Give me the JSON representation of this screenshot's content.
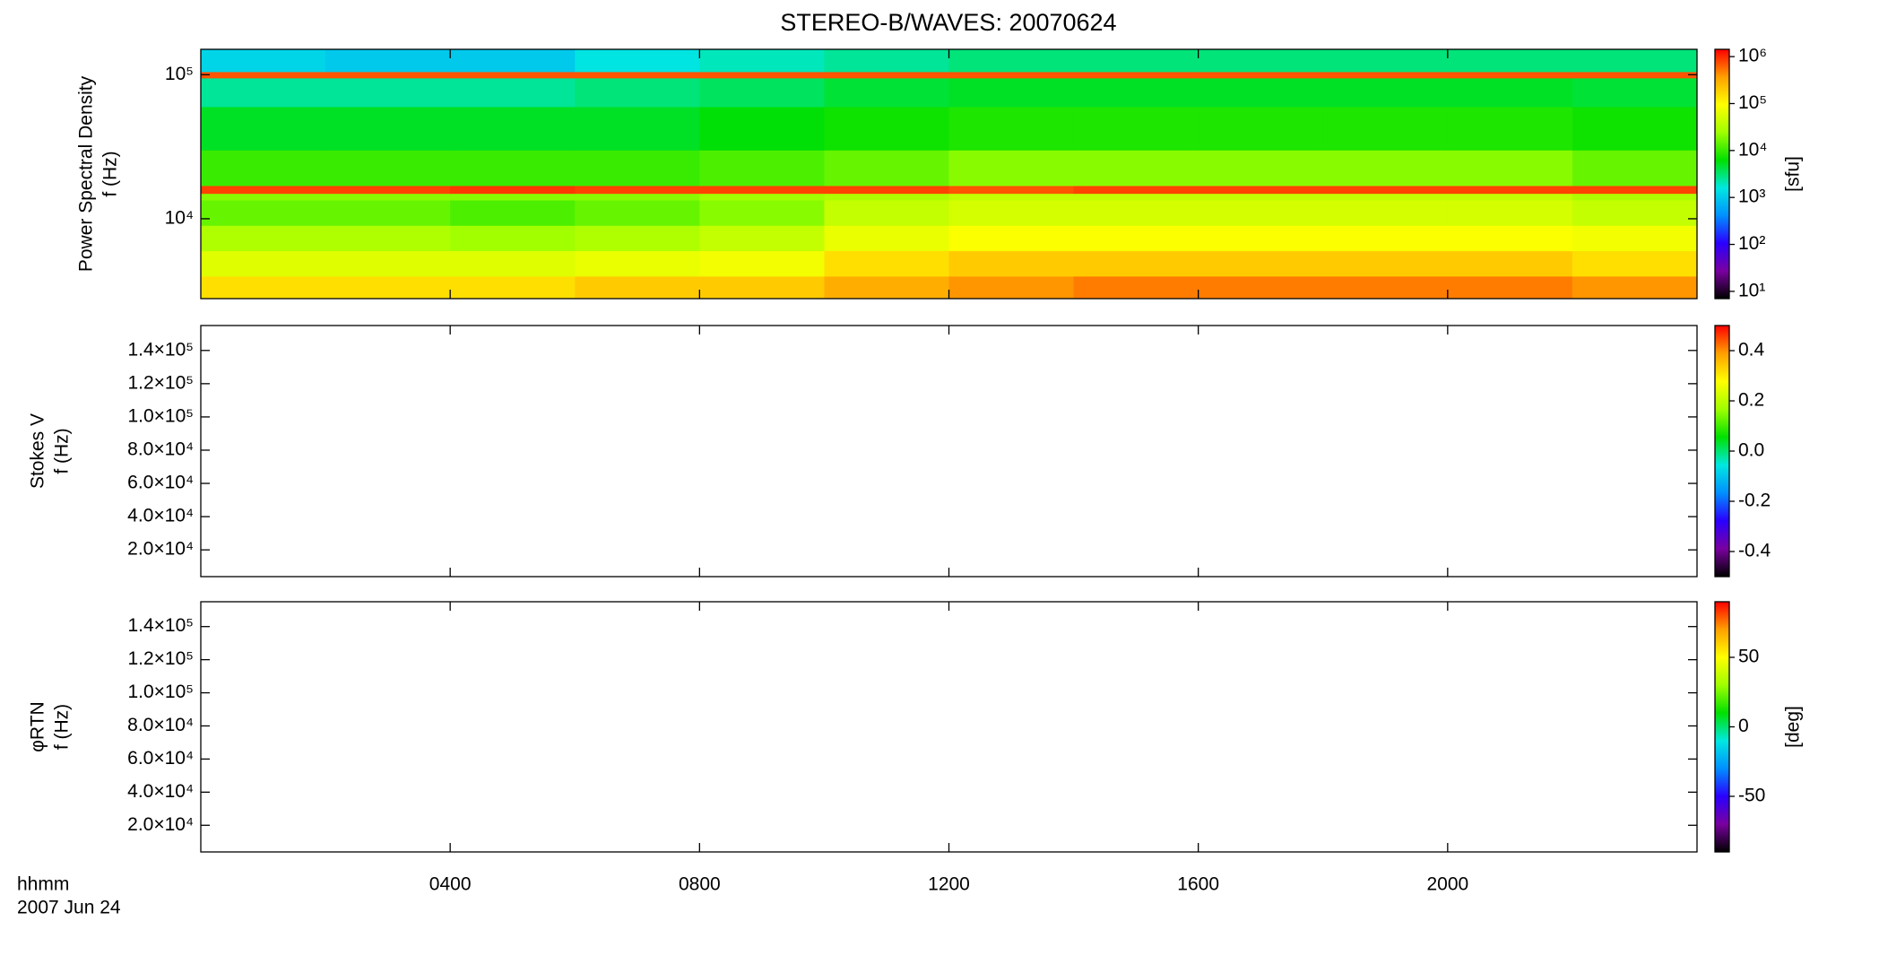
{
  "chart_data": [
    {
      "type": "heatmap",
      "title": "STEREO-B/WAVES: 20070624",
      "ylabel": [
        "Power Spectral Density",
        "f (Hz)"
      ],
      "x_edges": [
        0,
        2,
        4,
        6,
        8,
        10,
        12,
        14,
        16,
        18,
        20,
        22,
        24
      ],
      "y_edges": [
        2790,
        4000,
        6000,
        9000,
        13500,
        15000,
        17000,
        30000,
        60000,
        95000,
        105000,
        150000
      ],
      "z": [
        [
          150000,
          150000,
          150000,
          200000,
          200000,
          300000,
          400000,
          500000,
          500000,
          500000,
          500000,
          400000
        ],
        [
          60000,
          60000,
          60000,
          70000,
          80000,
          150000,
          200000,
          200000,
          200000,
          200000,
          200000,
          150000
        ],
        [
          30000,
          30000,
          25000,
          30000,
          40000,
          70000,
          90000,
          90000,
          90000,
          90000,
          90000,
          80000
        ],
        [
          15000,
          15000,
          12000,
          15000,
          20000,
          40000,
          50000,
          50000,
          50000,
          50000,
          50000,
          40000
        ],
        [
          20000,
          20000,
          20000,
          20000,
          25000,
          30000,
          40000,
          40000,
          40000,
          40000,
          40000,
          30000
        ],
        [
          800000,
          800000,
          900000,
          800000,
          800000,
          800000,
          700000,
          800000,
          800000,
          800000,
          800000,
          800000
        ],
        [
          10000,
          10000,
          10000,
          10000,
          12000,
          15000,
          20000,
          20000,
          20000,
          20000,
          20000,
          15000
        ],
        [
          5000,
          5000,
          5000,
          5000,
          6000,
          7000,
          8000,
          8000,
          8000,
          8000,
          8000,
          7000
        ],
        [
          2500,
          2500,
          2500,
          3000,
          3500,
          4500,
          5000,
          5000,
          5000,
          5000,
          5000,
          4500
        ],
        [
          700000,
          700000,
          700000,
          700000,
          700000,
          700000,
          700000,
          700000,
          700000,
          700000,
          700000,
          700000
        ],
        [
          1200,
          1000,
          1000,
          1500,
          2000,
          2500,
          3000,
          3000,
          3000,
          3000,
          3000,
          3000
        ]
      ],
      "xlim": [
        0,
        24
      ],
      "xticks": [
        4,
        8,
        12,
        16,
        20
      ],
      "ylim": [
        2790,
        150000
      ],
      "ylog": true,
      "yticks": [
        {
          "value": 10000,
          "label": "10⁴"
        },
        {
          "value": 100000,
          "label": "10⁵"
        }
      ],
      "clim": [
        7,
        1430000
      ],
      "clog": true,
      "cticks": [
        {
          "value": 10,
          "label": "10¹"
        },
        {
          "value": 100,
          "label": "10²"
        },
        {
          "value": 1000,
          "label": "10³"
        },
        {
          "value": 10000,
          "label": "10⁴"
        },
        {
          "value": 100000,
          "label": "10⁵"
        },
        {
          "value": 1000000,
          "label": "10⁶"
        }
      ],
      "clabel": "[sfu]",
      "colormap": [
        "#000000",
        "#7a00a0",
        "#2a00ff",
        "#0090ff",
        "#00e8e0",
        "#00e000",
        "#a0ff00",
        "#ffff00",
        "#ffa000",
        "#ff0000"
      ]
    },
    {
      "type": "heatmap",
      "ylabel": [
        "Stokes V",
        "f (Hz)"
      ],
      "xlim": [
        0,
        24
      ],
      "xticks": [
        4,
        8,
        12,
        16,
        20
      ],
      "ylim": [
        3900,
        155000
      ],
      "yticks": [
        {
          "value": 20000,
          "label": "2.0×10⁴"
        },
        {
          "value": 40000,
          "label": "4.0×10⁴"
        },
        {
          "value": 60000,
          "label": "6.0×10⁴"
        },
        {
          "value": 80000,
          "label": "8.0×10⁴"
        },
        {
          "value": 100000,
          "label": "1.0×10⁵"
        },
        {
          "value": 120000,
          "label": "1.2×10⁵"
        },
        {
          "value": 140000,
          "label": "1.4×10⁵"
        }
      ],
      "clim": [
        -0.5,
        0.5
      ],
      "cticks": [
        -0.4,
        -0.2,
        {
          "value": 0,
          "label": "0.0"
        },
        0.2,
        0.4
      ],
      "colormap": [
        "#000000",
        "#7a00a0",
        "#2a00ff",
        "#0090ff",
        "#00e8e0",
        "#00e000",
        "#a0ff00",
        "#ffff00",
        "#ffa000",
        "#ff0000"
      ]
    },
    {
      "type": "heatmap",
      "ylabel": [
        "φRTN",
        "f (Hz)"
      ],
      "xlim": [
        0,
        24
      ],
      "xticks": [
        {
          "value": 4,
          "label": "0400"
        },
        {
          "value": 8,
          "label": "0800"
        },
        {
          "value": 12,
          "label": "1200"
        },
        {
          "value": 16,
          "label": "1600"
        },
        {
          "value": 20,
          "label": "2000"
        }
      ],
      "xlabel": "hhmm",
      "date": "2007 Jun 24",
      "ylim": [
        3900,
        155000
      ],
      "yticks": [
        {
          "value": 20000,
          "label": "2.0×10⁴"
        },
        {
          "value": 40000,
          "label": "4.0×10⁴"
        },
        {
          "value": 60000,
          "label": "6.0×10⁴"
        },
        {
          "value": 80000,
          "label": "8.0×10⁴"
        },
        {
          "value": 100000,
          "label": "1.0×10⁵"
        },
        {
          "value": 120000,
          "label": "1.2×10⁵"
        },
        {
          "value": 140000,
          "label": "1.4×10⁵"
        }
      ],
      "clim": [
        -90,
        90
      ],
      "cticks": [
        -50,
        0,
        50
      ],
      "clabel": "[deg]",
      "colormap": [
        "#000000",
        "#7a00a0",
        "#2a00ff",
        "#0090ff",
        "#00e8e0",
        "#00e000",
        "#a0ff00",
        "#ffff00",
        "#ffa000",
        "#ff0000"
      ]
    }
  ]
}
